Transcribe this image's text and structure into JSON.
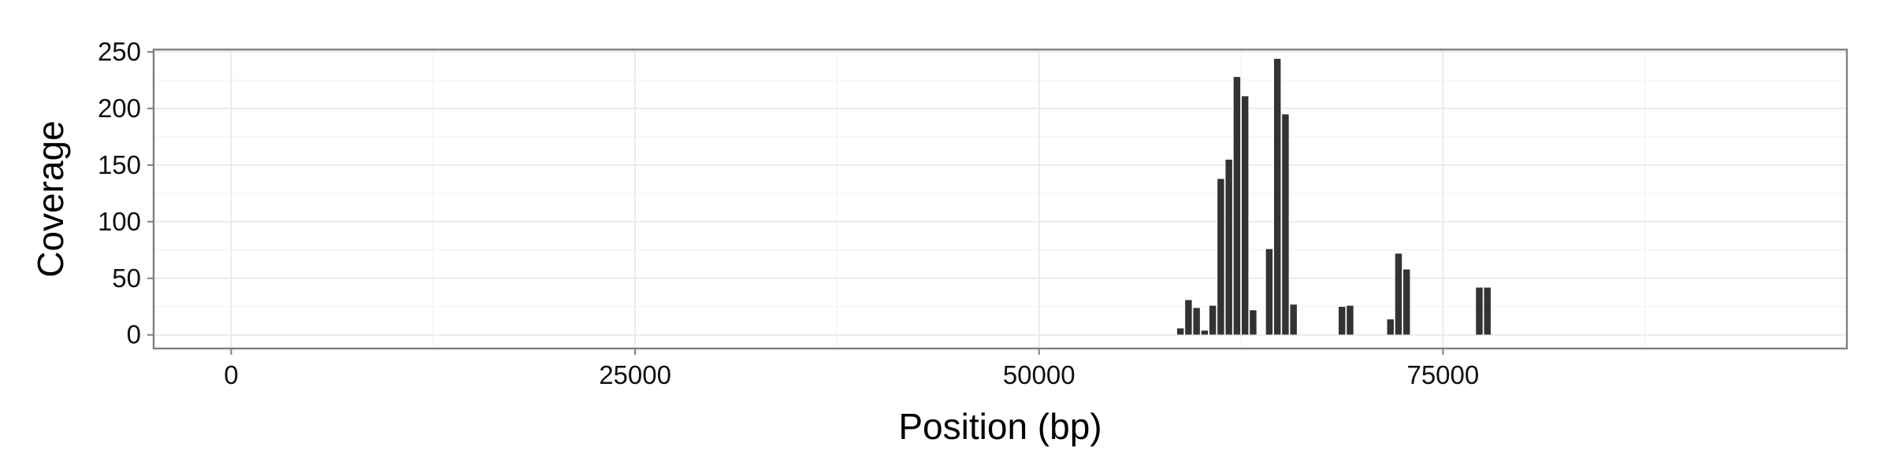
{
  "chart_data": {
    "type": "bar",
    "title": "",
    "xlabel": "Position (bp)",
    "ylabel": "Coverage",
    "xlim": [
      -4800,
      100000
    ],
    "ylim": [
      -12,
      252
    ],
    "x_ticks": [
      0,
      25000,
      50000,
      75000
    ],
    "x_tick_labels": [
      "0",
      "25000",
      "50000",
      "75000"
    ],
    "y_ticks": [
      0,
      50,
      100,
      150,
      200,
      250
    ],
    "y_tick_labels": [
      "0",
      "50",
      "100",
      "150",
      "200",
      "250"
    ],
    "bin_width": 500,
    "grid": true,
    "legend": "none",
    "colors": {
      "bar": "#333333",
      "grid": "#ebebeb",
      "border": "#7f7f7f",
      "background": "#ffffff"
    },
    "series": [
      {
        "x": [
          58750,
          59250,
          59750,
          60250,
          60750,
          61250,
          61750,
          62250,
          62750,
          63250,
          64250,
          64750,
          65250,
          65750,
          68750,
          69250,
          71750,
          72250,
          72750,
          77250,
          77750
        ],
        "values": [
          6,
          31,
          24,
          4,
          26,
          138,
          155,
          228,
          211,
          22,
          76,
          244,
          195,
          27,
          25,
          26,
          14,
          72,
          58,
          42,
          42
        ]
      }
    ]
  }
}
